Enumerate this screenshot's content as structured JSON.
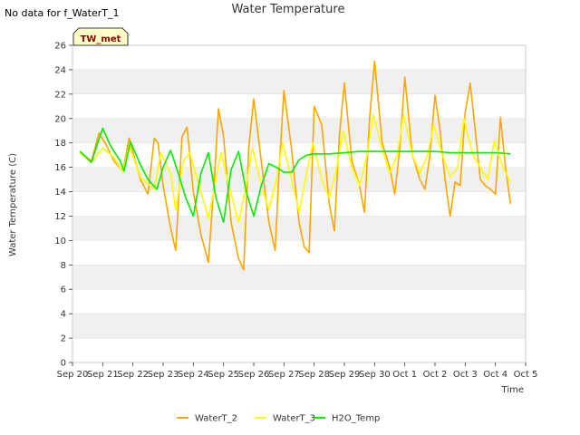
{
  "header": {
    "no_data_note": "No data for f_WaterT_1",
    "site_badge": "TW_met"
  },
  "colors": {
    "WaterT_2": "#FFA500",
    "WaterT_3": "#FFFF00",
    "H2O_Temp": "#00EE00",
    "band": "#f0f0f0",
    "badge_fill": "#ffffc8",
    "badge_text": "#8b0000"
  },
  "chart_data": {
    "type": "line",
    "title": "Water Temperature",
    "xlabel": "Time",
    "ylabel": "Water Temperature (C)",
    "xlim": [
      "2020-09-20",
      "2020-10-05"
    ],
    "ylim": [
      0,
      26
    ],
    "yticks": [
      0,
      2,
      4,
      6,
      8,
      10,
      12,
      14,
      16,
      18,
      20,
      22,
      24,
      26
    ],
    "xtick_labels": [
      "Sep 20",
      "Sep 21",
      "Sep 22",
      "Sep 23",
      "Sep 24",
      "Sep 25",
      "Sep 26",
      "Sep 27",
      "Sep 28",
      "Sep 29",
      "Sep 30",
      "Oct 1",
      "Oct 2",
      "Oct 3",
      "Oct 4",
      "Oct 5"
    ],
    "grid": "horizontal-bands",
    "legend_position": "bottom",
    "series": [
      {
        "name": "WaterT_2",
        "color": "#FFA500",
        "x": [
          "2020-09-20T06:00",
          "2020-09-20T15:00",
          "2020-09-20T21:00",
          "2020-09-21T03:00",
          "2020-09-21T09:00",
          "2020-09-21T16:00",
          "2020-09-21T21:00",
          "2020-09-22T02:00",
          "2020-09-22T06:00",
          "2020-09-22T12:00",
          "2020-09-22T17:00",
          "2020-09-22T20:00",
          "2020-09-23T00:00",
          "2020-09-23T06:00",
          "2020-09-23T10:00",
          "2020-09-23T15:00",
          "2020-09-23T19:00",
          "2020-09-24T00:00",
          "2020-09-24T06:00",
          "2020-09-24T12:00",
          "2020-09-24T17:00",
          "2020-09-24T20:00",
          "2020-09-25T00:00",
          "2020-09-25T06:00",
          "2020-09-25T12:00",
          "2020-09-25T16:00",
          "2020-09-25T20:00",
          "2020-09-26T00:00",
          "2020-09-26T06:00",
          "2020-09-26T12:00",
          "2020-09-26T17:00",
          "2020-09-26T20:00",
          "2020-09-27T00:00",
          "2020-09-27T06:00",
          "2020-09-27T12:00",
          "2020-09-27T16:00",
          "2020-09-27T20:00",
          "2020-09-28T00:00",
          "2020-09-28T06:00",
          "2020-09-28T12:00",
          "2020-09-28T16:00",
          "2020-09-28T20:00",
          "2020-09-29T00:00",
          "2020-09-29T06:00",
          "2020-09-29T12:00",
          "2020-09-29T16:00",
          "2020-09-29T20:00",
          "2020-09-30T00:00",
          "2020-09-30T06:00",
          "2020-09-30T12:00",
          "2020-09-30T16:00",
          "2020-09-30T20:00",
          "2020-10-01T00:00",
          "2020-10-01T06:00",
          "2020-10-01T12:00",
          "2020-10-01T16:00",
          "2020-10-01T20:00",
          "2020-10-02T00:00",
          "2020-10-02T04:00",
          "2020-10-02T08:00",
          "2020-10-02T12:00",
          "2020-10-02T16:00",
          "2020-10-02T20:00",
          "2020-10-03T00:00",
          "2020-10-03T04:00",
          "2020-10-03T08:00",
          "2020-10-03T12:00",
          "2020-10-03T16:00",
          "2020-10-03T20:00",
          "2020-10-04T00:00",
          "2020-10-04T04:00",
          "2020-10-04T08:00",
          "2020-10-04T12:00"
        ],
        "values": [
          17.3,
          16.5,
          18.8,
          17.8,
          16.5,
          15.7,
          18.4,
          16.5,
          15.0,
          13.8,
          18.4,
          18.0,
          14.5,
          11.0,
          9.2,
          18.5,
          19.3,
          14.0,
          10.5,
          8.2,
          15.5,
          20.8,
          18.5,
          11.5,
          8.5,
          7.6,
          17.5,
          21.6,
          16.5,
          11.5,
          9.2,
          15.5,
          22.3,
          17.5,
          11.5,
          9.5,
          9.0,
          21.0,
          19.5,
          13.0,
          10.8,
          18.5,
          22.9,
          16.5,
          14.5,
          12.3,
          20.0,
          24.7,
          18.0,
          16.0,
          13.8,
          17.5,
          23.4,
          17.0,
          15.0,
          14.2,
          17.0,
          21.9,
          19.0,
          15.0,
          12.0,
          14.8,
          14.5,
          20.5,
          22.9,
          19.0,
          15.0,
          14.5,
          14.2,
          13.8,
          20.1,
          16.0,
          13.0
        ]
      },
      {
        "name": "WaterT_3",
        "color": "#FFFF00",
        "x": [
          "2020-09-20T06:00",
          "2020-09-20T15:00",
          "2020-09-21T00:00",
          "2020-09-21T09:00",
          "2020-09-21T16:00",
          "2020-09-21T21:00",
          "2020-09-22T06:00",
          "2020-09-22T17:00",
          "2020-09-22T22:00",
          "2020-09-23T06:00",
          "2020-09-23T10:00",
          "2020-09-23T16:00",
          "2020-09-23T21:00",
          "2020-09-24T06:00",
          "2020-09-24T12:00",
          "2020-09-24T18:00",
          "2020-09-24T22:00",
          "2020-09-25T06:00",
          "2020-09-25T12:00",
          "2020-09-25T18:00",
          "2020-09-25T23:00",
          "2020-09-26T06:00",
          "2020-09-26T12:00",
          "2020-09-26T18:00",
          "2020-09-26T23:00",
          "2020-09-27T06:00",
          "2020-09-27T12:00",
          "2020-09-27T18:00",
          "2020-09-27T23:00",
          "2020-09-28T06:00",
          "2020-09-28T12:00",
          "2020-09-28T18:00",
          "2020-09-28T23:00",
          "2020-09-29T06:00",
          "2020-09-29T12:00",
          "2020-09-29T18:00",
          "2020-09-29T23:00",
          "2020-09-30T06:00",
          "2020-09-30T12:00",
          "2020-09-30T18:00",
          "2020-09-30T23:00",
          "2020-10-01T06:00",
          "2020-10-01T12:00",
          "2020-10-01T18:00",
          "2020-10-01T23:00",
          "2020-10-02T06:00",
          "2020-10-02T12:00",
          "2020-10-02T18:00",
          "2020-10-02T23:00",
          "2020-10-03T06:00",
          "2020-10-03T12:00",
          "2020-10-03T18:00",
          "2020-10-03T23:00",
          "2020-10-04T06:00",
          "2020-10-04T12:00"
        ],
        "values": [
          17.2,
          16.4,
          17.6,
          16.8,
          15.6,
          17.8,
          15.2,
          14.2,
          17.2,
          15.5,
          12.5,
          16.5,
          17.2,
          14.0,
          11.8,
          15.0,
          17.2,
          13.8,
          11.5,
          14.5,
          17.6,
          14.5,
          12.5,
          15.0,
          18.0,
          15.0,
          12.3,
          15.5,
          18.0,
          15.0,
          13.5,
          16.0,
          19.0,
          16.0,
          14.5,
          17.0,
          20.3,
          17.5,
          15.5,
          17.0,
          20.3,
          17.0,
          15.5,
          17.0,
          19.5,
          17.0,
          15.2,
          16.0,
          20.0,
          17.0,
          16.0,
          15.0,
          18.2,
          16.0,
          14.8
        ]
      },
      {
        "name": "H2O_Temp",
        "color": "#00EE00",
        "x": [
          "2020-09-20T06:00",
          "2020-09-20T15:00",
          "2020-09-21T00:00",
          "2020-09-21T06:00",
          "2020-09-21T14:00",
          "2020-09-21T17:00",
          "2020-09-21T22:00",
          "2020-09-22T06:00",
          "2020-09-22T12:00",
          "2020-09-22T19:00",
          "2020-09-23T00:00",
          "2020-09-23T06:00",
          "2020-09-23T12:00",
          "2020-09-23T18:00",
          "2020-09-24T00:00",
          "2020-09-24T06:00",
          "2020-09-24T12:00",
          "2020-09-24T18:00",
          "2020-09-25T00:00",
          "2020-09-25T06:00",
          "2020-09-25T12:00",
          "2020-09-25T18:00",
          "2020-09-26T00:00",
          "2020-09-26T06:00",
          "2020-09-26T12:00",
          "2020-09-26T18:00",
          "2020-09-27T00:00",
          "2020-09-27T06:00",
          "2020-09-27T12:00",
          "2020-09-27T18:00",
          "2020-09-28T00:00",
          "2020-09-28T12:00",
          "2020-09-29T00:00",
          "2020-09-29T12:00",
          "2020-09-30T00:00",
          "2020-10-01T00:00",
          "2020-10-02T00:00",
          "2020-10-02T12:00",
          "2020-10-03T00:00",
          "2020-10-04T00:00",
          "2020-10-04T12:00"
        ],
        "values": [
          17.3,
          16.4,
          19.2,
          17.8,
          16.5,
          15.7,
          18.1,
          16.2,
          15.0,
          14.2,
          16.0,
          17.4,
          15.5,
          13.5,
          12.0,
          15.5,
          17.2,
          13.5,
          11.5,
          15.8,
          17.3,
          14.0,
          12.0,
          14.5,
          16.3,
          16.0,
          15.6,
          15.6,
          16.6,
          17.0,
          17.1,
          17.1,
          17.2,
          17.3,
          17.3,
          17.3,
          17.3,
          17.2,
          17.2,
          17.2,
          17.1
        ]
      }
    ]
  }
}
